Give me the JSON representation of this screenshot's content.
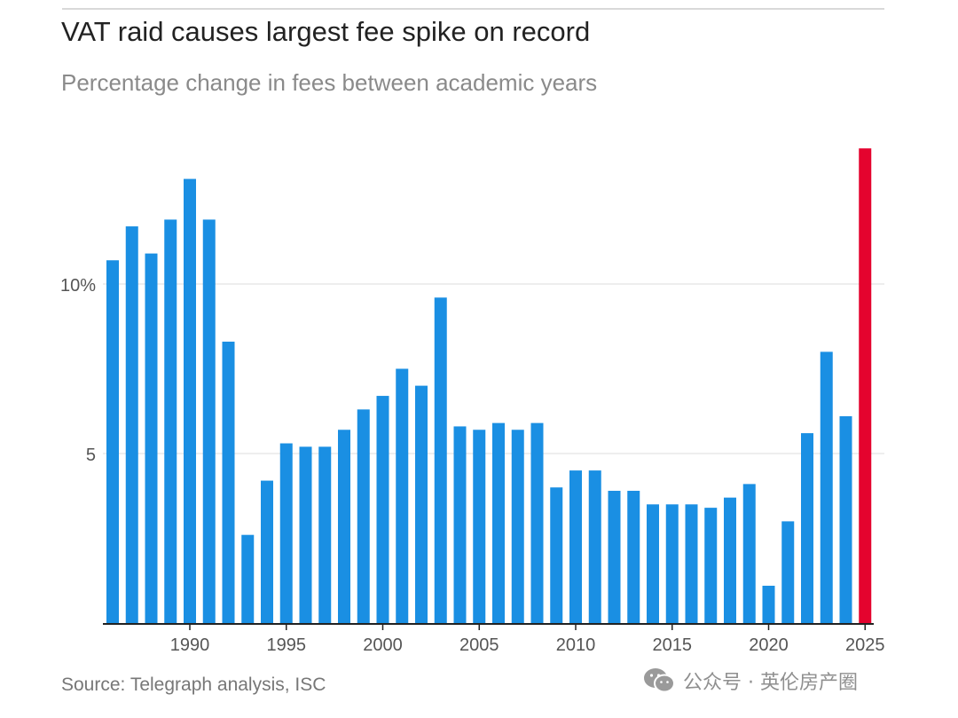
{
  "title": "VAT raid causes largest fee spike on record",
  "subtitle": "Percentage change in fees between academic years",
  "source": "Source: Telegraph analysis, ISC",
  "watermark": {
    "icon": "wechat-icon",
    "text": "公众号 · 英伦房产圈"
  },
  "colors": {
    "bar": "#1a8fe3",
    "highlight": "#e4032e",
    "grid": "#e3e3e3",
    "axis": "#222222",
    "tick_label": "#555555"
  },
  "chart_data": {
    "type": "bar",
    "x": [
      1986,
      1987,
      1988,
      1989,
      1990,
      1991,
      1992,
      1993,
      1994,
      1995,
      1996,
      1997,
      1998,
      1999,
      2000,
      2001,
      2002,
      2003,
      2004,
      2005,
      2006,
      2007,
      2008,
      2009,
      2010,
      2011,
      2012,
      2013,
      2014,
      2015,
      2016,
      2017,
      2018,
      2019,
      2020,
      2021,
      2022,
      2023,
      2024,
      2025
    ],
    "values": [
      10.7,
      11.7,
      10.9,
      11.9,
      13.1,
      11.9,
      8.3,
      2.6,
      4.2,
      5.3,
      5.2,
      5.2,
      5.7,
      6.3,
      6.7,
      7.5,
      7.0,
      9.6,
      5.8,
      5.7,
      5.9,
      5.7,
      5.9,
      4.0,
      4.5,
      4.5,
      3.9,
      3.9,
      3.5,
      3.5,
      3.5,
      3.4,
      3.7,
      4.1,
      1.1,
      3.0,
      5.6,
      8.0,
      6.1,
      14.0
    ],
    "highlight": [
      2025
    ],
    "xticks": [
      1990,
      1995,
      2000,
      2005,
      2010,
      2015,
      2020,
      2025
    ],
    "yticks": [
      {
        "value": 5,
        "label": "5"
      },
      {
        "value": 10,
        "label": "10%"
      }
    ],
    "ylim": [
      0,
      14.5
    ],
    "grid": true,
    "xlabel": "",
    "ylabel": ""
  }
}
